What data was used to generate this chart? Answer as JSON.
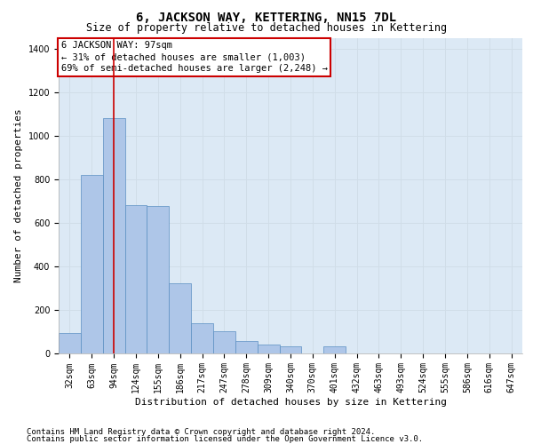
{
  "title": "6, JACKSON WAY, KETTERING, NN15 7DL",
  "subtitle": "Size of property relative to detached houses in Kettering",
  "xlabel": "Distribution of detached houses by size in Kettering",
  "ylabel": "Number of detached properties",
  "categories": [
    "32sqm",
    "63sqm",
    "94sqm",
    "124sqm",
    "155sqm",
    "186sqm",
    "217sqm",
    "247sqm",
    "278sqm",
    "309sqm",
    "340sqm",
    "370sqm",
    "401sqm",
    "432sqm",
    "463sqm",
    "493sqm",
    "524sqm",
    "555sqm",
    "586sqm",
    "616sqm",
    "647sqm"
  ],
  "values": [
    90,
    820,
    1080,
    680,
    675,
    320,
    135,
    100,
    55,
    40,
    30,
    0,
    30,
    0,
    0,
    0,
    0,
    0,
    0,
    0,
    0
  ],
  "bar_color": "#aec6e8",
  "bar_edge_color": "#5a8fc2",
  "annotation_box_text": "6 JACKSON WAY: 97sqm\n← 31% of detached houses are smaller (1,003)\n69% of semi-detached houses are larger (2,248) →",
  "annotation_box_color": "#ffffff",
  "annotation_box_edge_color": "#cc0000",
  "vline_color": "#cc0000",
  "vline_position": 2.0,
  "ylim": [
    0,
    1450
  ],
  "yticks": [
    0,
    200,
    400,
    600,
    800,
    1000,
    1200,
    1400
  ],
  "grid_color": "#d0dde8",
  "plot_bg_color": "#dce9f5",
  "footer1": "Contains HM Land Registry data © Crown copyright and database right 2024.",
  "footer2": "Contains public sector information licensed under the Open Government Licence v3.0.",
  "title_fontsize": 10,
  "subtitle_fontsize": 8.5,
  "xlabel_fontsize": 8,
  "ylabel_fontsize": 8,
  "annot_fontsize": 7.5,
  "tick_fontsize": 7,
  "footer_fontsize": 6.5
}
